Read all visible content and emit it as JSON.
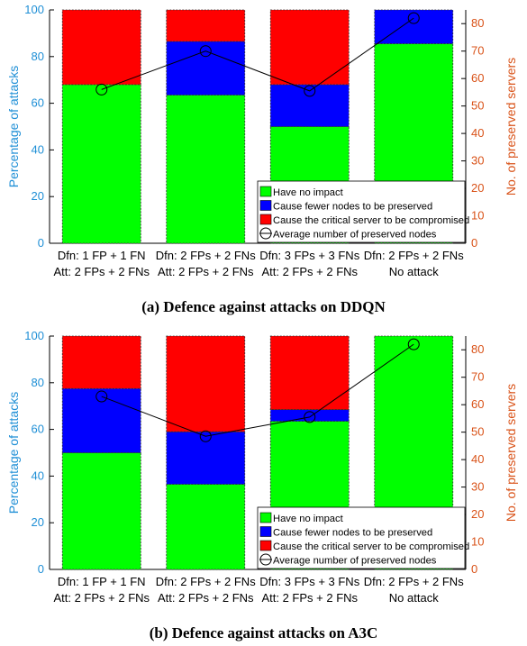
{
  "colors": {
    "no_impact": "#00ff00",
    "fewer_nodes": "#0000ff",
    "compromised": "#ff0000",
    "left_axis": "#1f8fd6",
    "right_axis": "#d95319",
    "line": "#000000"
  },
  "chart_data": [
    {
      "type": "bar",
      "stacked": true,
      "caption": "(a) Defence against attacks on DDQN",
      "categories": [
        [
          "Dfn: 1 FP + 1 FN",
          "Att: 2 FPs + 2 FNs"
        ],
        [
          "Dfn: 2 FPs + 2 FNs",
          "Att: 2 FPs + 2 FNs"
        ],
        [
          "Dfn: 3 FPs + 3 FNs",
          "Att: 2 FPs + 2 FNs"
        ],
        [
          "Dfn: 2 FPs + 2 FNs",
          "No attack"
        ]
      ],
      "ylabel": "Percentage of attacks",
      "ylim": [
        0,
        100
      ],
      "yticks": [
        "0",
        "20",
        "40",
        "60",
        "80",
        "100"
      ],
      "y2label": "No. of preserved servers",
      "y2lim": [
        0,
        85
      ],
      "y2ticks": [
        "0",
        "10",
        "20",
        "30",
        "40",
        "50",
        "60",
        "70",
        "80"
      ],
      "series": [
        {
          "name": "Have no impact",
          "values": [
            68,
            63.5,
            50,
            85.5
          ]
        },
        {
          "name": "Cause fewer nodes to be preserved",
          "values": [
            0,
            23,
            18,
            14.5
          ]
        },
        {
          "name": "Cause the critical server to be compromised",
          "values": [
            32,
            13.5,
            32,
            0
          ]
        }
      ],
      "line_series": {
        "name": "Average number of preserved nodes",
        "values": [
          56,
          70,
          55.5,
          82
        ]
      },
      "legend": "bottom-right"
    },
    {
      "type": "bar",
      "stacked": true,
      "caption": "(b) Defence against attacks on A3C",
      "categories": [
        [
          "Dfn: 1 FP + 1 FN",
          "Att: 2 FPs + 2 FNs"
        ],
        [
          "Dfn: 2 FPs + 2 FNs",
          "Att: 2 FPs + 2 FNs"
        ],
        [
          "Dfn: 3 FPs + 3 FNs",
          "Att: 2 FPs + 2 FNs"
        ],
        [
          "Dfn: 2 FPs + 2 FNs",
          "No attack"
        ]
      ],
      "ylabel": "Percentage of attacks",
      "ylim": [
        0,
        100
      ],
      "yticks": [
        "0",
        "20",
        "40",
        "60",
        "80",
        "100"
      ],
      "y2label": "No. of preserved servers",
      "y2lim": [
        0,
        85
      ],
      "y2ticks": [
        "0",
        "10",
        "20",
        "30",
        "40",
        "50",
        "60",
        "70",
        "80"
      ],
      "series": [
        {
          "name": "Have no impact",
          "values": [
            50,
            36.5,
            63.5,
            100
          ]
        },
        {
          "name": "Cause fewer nodes to be preserved",
          "values": [
            27.5,
            22.5,
            5,
            0
          ]
        },
        {
          "name": "Cause the critical server to be compromised",
          "values": [
            22.5,
            41,
            31.5,
            0
          ]
        }
      ],
      "line_series": {
        "name": "Average number of preserved nodes",
        "values": [
          63,
          48.5,
          55.5,
          82
        ]
      },
      "legend": "bottom-right"
    }
  ]
}
